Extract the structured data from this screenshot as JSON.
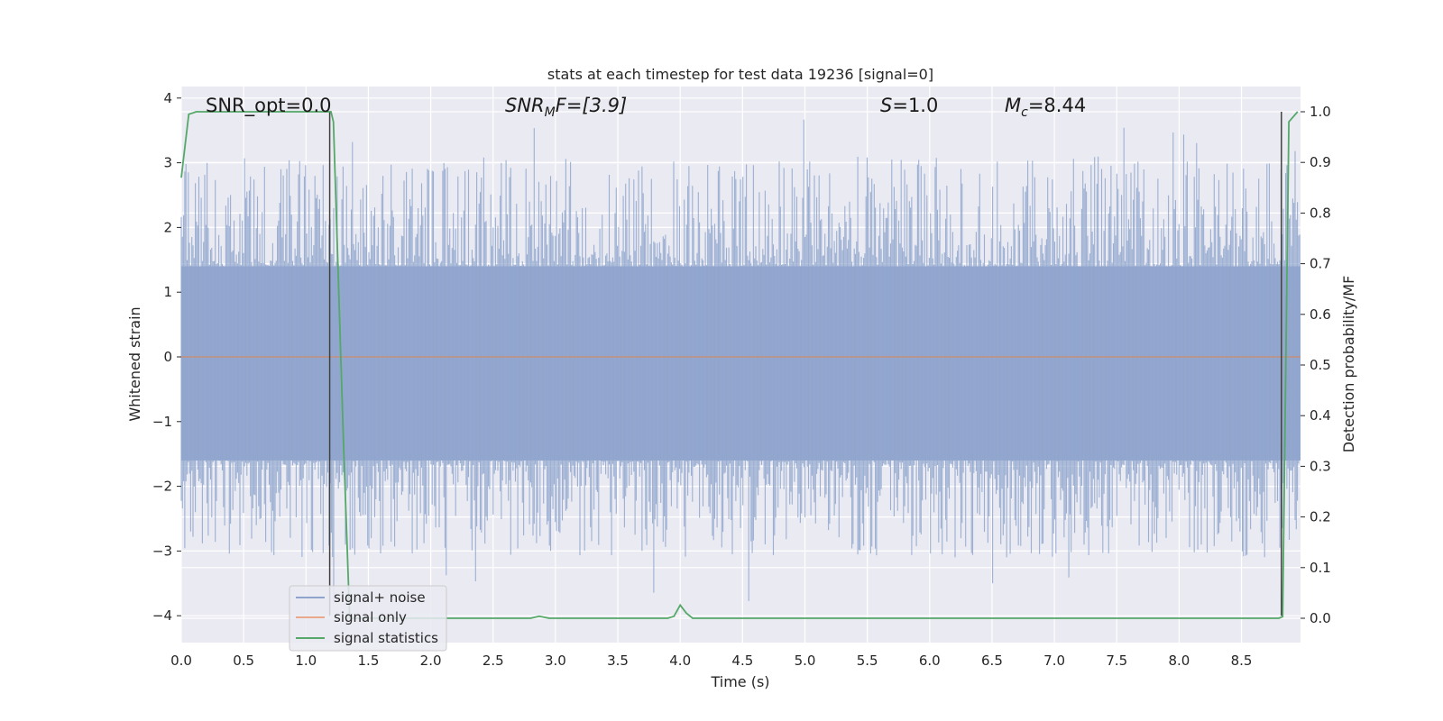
{
  "chart_data": {
    "type": "line",
    "title": "stats at each timestep for test data 19236 [signal=0]",
    "xlabel": "Time (s)",
    "ylabel": "Whitened strain",
    "y2label": "Detection probability/MF",
    "xlim": [
      0.0,
      9.0
    ],
    "ylim": [
      -4.4,
      4.15
    ],
    "y2lim": [
      -0.05,
      1.045
    ],
    "xticks": [
      "0.0",
      "0.5",
      "1.0",
      "1.5",
      "2.0",
      "2.5",
      "3.0",
      "3.5",
      "4.0",
      "4.5",
      "5.0",
      "5.5",
      "6.0",
      "6.5",
      "7.0",
      "7.5",
      "8.0",
      "8.5"
    ],
    "yticks": [
      "4",
      "3",
      "2",
      "1",
      "0",
      "−1",
      "−2",
      "−3",
      "−4"
    ],
    "y2ticks": [
      "1.0",
      "0.9",
      "0.8",
      "0.7",
      "0.6",
      "0.5",
      "0.4",
      "0.3",
      "0.2",
      "0.1",
      "0.0"
    ],
    "grid": true,
    "legend_position": "lower-left",
    "annotations": {
      "snr_opt": "SNR_opt=0.0",
      "snr_mf_base": "SNR",
      "snr_mf_sub": "M",
      "snr_mf_rest": "F=[3.9]",
      "s_label": "S",
      "s_value": "=1.0",
      "mc_base": "M",
      "mc_sub": "c",
      "mc_value": "=8.44"
    },
    "series": [
      {
        "name": "signal+ noise",
        "color": "#8ea4cc",
        "noise_envelope": {
          "upper_typical": 1.4,
          "lower_typical": -1.6,
          "peak_max": 3.8,
          "trough_min": -4.1
        }
      },
      {
        "name": "signal only",
        "color": "#dd8452",
        "values_constant": 0.0
      },
      {
        "name": "signal statistics",
        "color": "#55a868",
        "axis": "right",
        "points": [
          [
            0.0,
            0.87
          ],
          [
            0.06,
            0.995
          ],
          [
            0.12,
            1.0
          ],
          [
            1.2,
            1.0
          ],
          [
            1.22,
            0.98
          ],
          [
            1.3,
            0.35
          ],
          [
            1.35,
            0.0
          ],
          [
            2.8,
            0.0
          ],
          [
            2.87,
            0.004
          ],
          [
            2.95,
            0.0
          ],
          [
            3.9,
            0.0
          ],
          [
            3.95,
            0.004
          ],
          [
            4.0,
            0.026
          ],
          [
            4.05,
            0.01
          ],
          [
            4.1,
            0.0
          ],
          [
            8.8,
            0.0
          ],
          [
            8.83,
            0.003
          ],
          [
            8.88,
            0.98
          ],
          [
            8.95,
            1.0
          ]
        ]
      }
    ],
    "vertical_lines": [
      1.19,
      8.82
    ],
    "vertical_line_color": "#404040"
  },
  "colors": {
    "plot_background": "#eaeaf2",
    "grid": "#ffffff"
  }
}
